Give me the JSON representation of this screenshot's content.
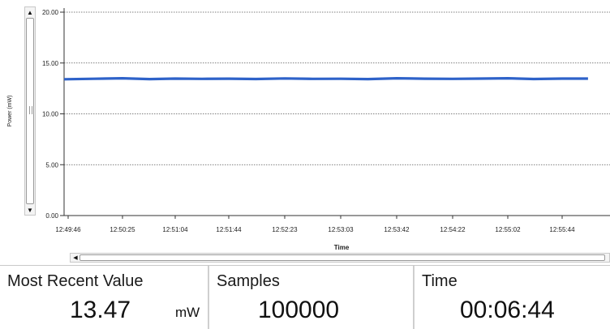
{
  "chart_data": {
    "type": "line",
    "title": "",
    "xlabel": "Time",
    "ylabel": "Power (mW)",
    "ylim": [
      0,
      20
    ],
    "yticks": [
      "0.00",
      "5.00",
      "10.00",
      "15.00",
      "20.00"
    ],
    "xticks": [
      "12:49:46",
      "12:50:25",
      "12:51:04",
      "12:51:44",
      "12:52:23",
      "12:53:03",
      "12:53:42",
      "12:54:22",
      "12:55:02",
      "12:55:44"
    ],
    "grid": "horizontal dotted",
    "series": [
      {
        "color": "#2e62c9",
        "x": [
          "12:49:46",
          "12:50:05",
          "12:50:25",
          "12:50:45",
          "12:51:04",
          "12:51:24",
          "12:51:44",
          "12:52:03",
          "12:52:23",
          "12:52:43",
          "12:53:03",
          "12:53:22",
          "12:53:42",
          "12:54:02",
          "12:54:22",
          "12:54:42",
          "12:55:02",
          "12:55:22",
          "12:55:44",
          "12:56:04"
        ],
        "values": [
          13.4,
          13.45,
          13.5,
          13.42,
          13.47,
          13.44,
          13.46,
          13.43,
          13.48,
          13.44,
          13.45,
          13.42,
          13.5,
          13.46,
          13.44,
          13.47,
          13.5,
          13.43,
          13.47,
          13.47
        ]
      }
    ]
  },
  "stats": {
    "most_recent": {
      "label": "Most Recent Value",
      "value": "13.47",
      "unit": "mW"
    },
    "samples": {
      "label": "Samples",
      "value": "100000"
    },
    "time": {
      "label": "Time",
      "value": "00:06:44"
    }
  },
  "icons": {
    "scroll_up": "triangle-up",
    "scroll_down": "triangle-down",
    "scroll_left": "triangle-left"
  }
}
